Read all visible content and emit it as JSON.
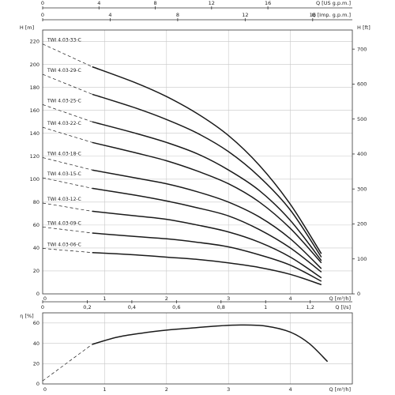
{
  "chart_data": [
    {
      "type": "line",
      "xlabel": "Q [m³/h]",
      "ylabel": "H [m]",
      "y2label": "H [ft]",
      "xlim": [
        0,
        5
      ],
      "ylim": [
        0,
        230
      ],
      "x_ticks": [
        0,
        1,
        2,
        3,
        4
      ],
      "y_ticks": [
        0,
        20,
        40,
        60,
        80,
        100,
        120,
        140,
        160,
        180,
        200,
        220
      ],
      "y2_ticks": [
        0,
        100,
        200,
        300,
        400,
        500,
        600,
        700
      ],
      "top_axes": [
        {
          "label": "Q [US g.p.m.]",
          "ticks": [
            0,
            4,
            8,
            12,
            16
          ]
        },
        {
          "label": "Q [Imp. g.p.m.]",
          "ticks": [
            0,
            4,
            8,
            12,
            16
          ]
        }
      ],
      "grid": true,
      "series": [
        {
          "name": "TWI 4.03-33-C",
          "x": [
            0.8,
            1.5,
            2.0,
            2.5,
            3.0,
            3.5,
            4.0,
            4.5
          ],
          "y": [
            198,
            184,
            172,
            157,
            138,
            112,
            78,
            35
          ]
        },
        {
          "name": "TWI 4.03-29-C",
          "x": [
            0.8,
            1.5,
            2.0,
            2.5,
            3.0,
            3.5,
            4.0,
            4.5
          ],
          "y": [
            174,
            162,
            152,
            140,
            124,
            102,
            73,
            32
          ]
        },
        {
          "name": "TWI 4.03-25-C",
          "x": [
            0.8,
            1.5,
            2.0,
            2.5,
            3.0,
            3.5,
            4.0,
            4.5
          ],
          "y": [
            150,
            140,
            132,
            122,
            108,
            90,
            64,
            29
          ]
        },
        {
          "name": "TWI 4.03-22-C",
          "x": [
            0.8,
            1.5,
            2.0,
            2.5,
            3.0,
            3.5,
            4.0,
            4.5
          ],
          "y": [
            132,
            123,
            116,
            107,
            96,
            80,
            57,
            27
          ]
        },
        {
          "name": "TWI 4.03-18-C",
          "x": [
            0.8,
            1.5,
            2.0,
            2.5,
            3.0,
            3.5,
            4.0,
            4.5
          ],
          "y": [
            108,
            101,
            96,
            89,
            80,
            67,
            48,
            22
          ]
        },
        {
          "name": "TWI 4.03-15-C",
          "x": [
            0.8,
            1.5,
            2.0,
            2.5,
            3.0,
            3.5,
            4.0,
            4.5
          ],
          "y": [
            92,
            86,
            81,
            75,
            68,
            56,
            40,
            19
          ]
        },
        {
          "name": "TWI 4.03-12-C",
          "x": [
            0.8,
            1.5,
            2.0,
            2.5,
            3.0,
            3.5,
            4.0,
            4.5
          ],
          "y": [
            72,
            68,
            65,
            60,
            54,
            45,
            32,
            14
          ]
        },
        {
          "name": "TWI 4.03-09-C",
          "x": [
            0.8,
            1.5,
            2.0,
            2.5,
            3.0,
            3.5,
            4.0,
            4.5
          ],
          "y": [
            53,
            50,
            48,
            45,
            41,
            34,
            25,
            11
          ]
        },
        {
          "name": "TWI 4.03-06-C",
          "x": [
            0.8,
            1.5,
            2.0,
            2.5,
            3.0,
            3.5,
            4.0,
            4.5
          ],
          "y": [
            36,
            34,
            32,
            30,
            27,
            23,
            17,
            8
          ]
        }
      ],
      "dash_start": {
        "x": 0,
        "y_ratio": 1.1
      }
    },
    {
      "type": "line",
      "xlabel": "Q [m³/h]",
      "ylabel": "η [%]",
      "xlim": [
        0,
        5
      ],
      "ylim": [
        0,
        70
      ],
      "x_ticks": [
        0,
        1,
        2,
        3,
        4
      ],
      "y_ticks": [
        0,
        20,
        40,
        60
      ],
      "top_axis": {
        "label": "Q [l/s]",
        "ticks": [
          "0",
          "0,2",
          "0,4",
          "0,6",
          "0,8",
          "1",
          "1,2"
        ]
      },
      "grid": true,
      "series": [
        {
          "name": "",
          "x": [
            0.8,
            1.2,
            1.6,
            2.0,
            2.4,
            2.8,
            3.2,
            3.6,
            4.0,
            4.3,
            4.6
          ],
          "y": [
            39,
            46,
            50,
            53,
            55,
            57,
            58,
            57,
            51,
            40,
            22
          ]
        }
      ],
      "dash": {
        "x": [
          0,
          0.8
        ],
        "y": [
          3,
          39
        ]
      }
    }
  ]
}
